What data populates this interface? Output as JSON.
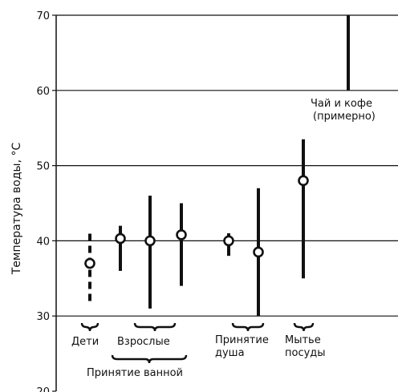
{
  "chart_data": {
    "type": "range",
    "title": "",
    "xlabel": "",
    "ylabel": "Температура воды, °C",
    "ylim": [
      20,
      70
    ],
    "yticks": [
      "20",
      "30",
      "40",
      "50",
      "60",
      "70"
    ],
    "grid": true,
    "series": [
      {
        "group": "Дети",
        "low": 32,
        "high": 41,
        "mean": 37,
        "dashed": true
      },
      {
        "group": "Взрослые",
        "low": 36,
        "high": 42,
        "mean": 40.3,
        "dashed": false
      },
      {
        "group": "Взрослые",
        "low": 31,
        "high": 46,
        "mean": 40,
        "dashed": false
      },
      {
        "group": "Взрослые",
        "low": 34,
        "high": 45,
        "mean": 40.8,
        "dashed": false
      },
      {
        "group": "Принятие душа",
        "low": 38,
        "high": 41,
        "mean": 40,
        "dashed": false
      },
      {
        "group": "Принятие душа",
        "low": 30,
        "high": 47,
        "mean": 38.5,
        "dashed": false
      },
      {
        "group": "Мытье посуды",
        "low": 35,
        "high": 53.5,
        "mean": 48,
        "dashed": false
      },
      {
        "group": "Чай и кофе (примерно)",
        "low": 60,
        "high": 70,
        "mean": null,
        "dashed": false
      }
    ],
    "category_labels": {
      "children": "Дети",
      "adults": "Взрослые",
      "shower_line1": "Принятие",
      "shower_line2": "душа",
      "dishes_line1": "Мытье",
      "dishes_line2": "посуды",
      "bathing": "Принятие ванной",
      "tea_line1": "Чай и кофе",
      "tea_line2": "(примерно)"
    }
  }
}
